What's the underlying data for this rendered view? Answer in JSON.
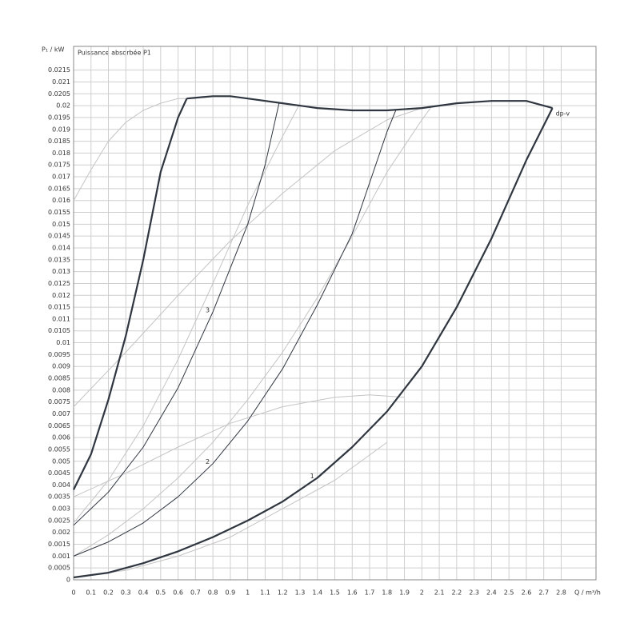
{
  "chart_data": {
    "type": "line",
    "title": "Puissance absorbée P1",
    "ylabel": "P₁ / kW",
    "xlabel": "Q / m³/h",
    "xlim": [
      0,
      3.0
    ],
    "ylim": [
      0,
      0.0225
    ],
    "xticks": [
      0,
      0.1,
      0.2,
      0.3,
      0.4,
      0.5,
      0.6,
      0.7,
      0.8,
      0.9,
      1,
      1.1,
      1.2,
      1.3,
      1.4,
      1.5,
      1.6,
      1.7,
      1.8,
      1.9,
      2,
      2.1,
      2.2,
      2.3,
      2.4,
      2.5,
      2.6,
      2.7,
      2.8
    ],
    "yticks": [
      0,
      0.0005,
      0.001,
      0.0015,
      0.002,
      0.0025,
      0.003,
      0.0035,
      0.004,
      0.0045,
      0.005,
      0.0055,
      0.006,
      0.0065,
      0.007,
      0.0075,
      0.008,
      0.0085,
      0.009,
      0.0095,
      0.01,
      0.0105,
      0.011,
      0.0115,
      0.012,
      0.0125,
      0.013,
      0.0135,
      0.014,
      0.0145,
      0.015,
      0.0155,
      0.016,
      0.0165,
      0.017,
      0.0175,
      0.018,
      0.0185,
      0.019,
      0.0195,
      0.02,
      0.0205,
      0.021,
      0.0215
    ],
    "grid": true,
    "series": [
      {
        "color": "#2f3640",
        "width": 2.2,
        "x": [
          0,
          0.1,
          0.2,
          0.3,
          0.4,
          0.5,
          0.6,
          0.65
        ],
        "values": [
          0.0038,
          0.0053,
          0.0076,
          0.0103,
          0.0135,
          0.0172,
          0.0195,
          0.0203
        ]
      },
      {
        "name": "dp-v",
        "color": "#2f3640",
        "width": 2.2,
        "x": [
          0.65,
          0.8,
          0.9,
          1.0,
          1.2,
          1.4,
          1.6,
          1.8,
          2.0,
          2.2,
          2.4,
          2.6,
          2.75
        ],
        "values": [
          0.0203,
          0.0204,
          0.0204,
          0.0203,
          0.0201,
          0.0199,
          0.0198,
          0.0198,
          0.0199,
          0.0201,
          0.0202,
          0.0202,
          0.0199
        ]
      },
      {
        "name": "1",
        "color": "#2f3640",
        "width": 2.2,
        "x": [
          0,
          0.2,
          0.4,
          0.6,
          0.8,
          1.0,
          1.2,
          1.4,
          1.6,
          1.8,
          2.0,
          2.2,
          2.4,
          2.6,
          2.75
        ],
        "values": [
          0.0001,
          0.0003,
          0.0007,
          0.0012,
          0.0018,
          0.0025,
          0.0033,
          0.0043,
          0.0056,
          0.0071,
          0.009,
          0.0115,
          0.0144,
          0.0177,
          0.0199
        ]
      },
      {
        "name": "2",
        "color": "#2f3640",
        "width": 1,
        "x": [
          0,
          0.2,
          0.4,
          0.6,
          0.8,
          1.0,
          1.2,
          1.4,
          1.6,
          1.8,
          1.85
        ],
        "values": [
          0.001,
          0.0016,
          0.0024,
          0.0035,
          0.0049,
          0.0067,
          0.0089,
          0.0116,
          0.0146,
          0.0189,
          0.0198
        ]
      },
      {
        "name": "3",
        "color": "#2f3640",
        "width": 1,
        "x": [
          0,
          0.2,
          0.4,
          0.6,
          0.8,
          1.0,
          1.1,
          1.18
        ],
        "values": [
          0.0023,
          0.0037,
          0.0056,
          0.0081,
          0.0113,
          0.015,
          0.0175,
          0.0201
        ]
      },
      {
        "color": "#c4c4c4",
        "width": 1,
        "x": [
          0,
          0.1,
          0.2,
          0.3,
          0.4,
          0.5,
          0.6,
          0.7
        ],
        "values": [
          0.016,
          0.0173,
          0.0185,
          0.0193,
          0.0198,
          0.0201,
          0.0203,
          0.0203
        ]
      },
      {
        "color": "#c4c4c4",
        "width": 1,
        "x": [
          0,
          0.3,
          0.6,
          0.9,
          1.2,
          1.5,
          1.7,
          1.9
        ],
        "values": [
          0.0035,
          0.0045,
          0.0056,
          0.0066,
          0.0073,
          0.0077,
          0.0078,
          0.0077
        ]
      },
      {
        "color": "#c4c4c4",
        "width": 1,
        "x": [
          0,
          0.3,
          0.6,
          0.9,
          1.2,
          1.5,
          1.8
        ],
        "values": [
          0.0001,
          0.0004,
          0.001,
          0.0018,
          0.003,
          0.0042,
          0.0058
        ]
      },
      {
        "color": "#c4c4c4",
        "width": 1,
        "x": [
          0,
          0.3,
          0.6,
          0.9,
          1.2,
          1.5,
          1.8,
          2.0
        ],
        "values": [
          0.0073,
          0.0096,
          0.012,
          0.0143,
          0.0163,
          0.0181,
          0.0194,
          0.0199
        ]
      },
      {
        "color": "#c4c4c4",
        "width": 1,
        "x": [
          0,
          0.2,
          0.4,
          0.6,
          0.8,
          1.0,
          1.2,
          1.3
        ],
        "values": [
          0.0024,
          0.0042,
          0.0065,
          0.0093,
          0.0125,
          0.0158,
          0.0187,
          0.0201
        ]
      },
      {
        "color": "#c4c4c4",
        "width": 1,
        "x": [
          0,
          0.2,
          0.4,
          0.6,
          0.8,
          1.0,
          1.2,
          1.4,
          1.6,
          1.8,
          2.0,
          2.05
        ],
        "values": [
          0.001,
          0.0019,
          0.003,
          0.0043,
          0.0058,
          0.0076,
          0.0096,
          0.0119,
          0.0145,
          0.0172,
          0.0194,
          0.0199
        ]
      }
    ]
  }
}
